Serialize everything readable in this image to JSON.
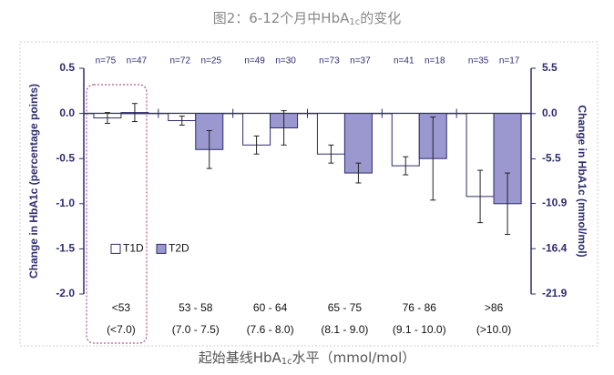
{
  "chart_data": {
    "type": "bar",
    "title": "图2：6-12个月中HbA",
    "title_sub": "1c",
    "title_end": "的变化",
    "caption": "起始基线HbA",
    "caption_sub": "1c",
    "caption_end": "水平（mmol/mol）",
    "y_label": "Change in HbA1c (percentage points)",
    "y2_label": "Change in HbA1c (mmol/mol)",
    "categories": [
      "<53",
      "53 - 58",
      "60 - 64",
      "65 - 75",
      "76 - 86",
      ">86"
    ],
    "categories_sub": [
      "(<7.0)",
      "(7.0 - 7.5)",
      "(7.6 - 8.0)",
      "(8.1 - 9.0)",
      "(9.1 - 10.0)",
      "(>10.0)"
    ],
    "series": [
      {
        "name": "T1D",
        "color": "#ffffff",
        "values": [
          -0.05,
          -0.08,
          -0.35,
          -0.45,
          -0.58,
          -0.92
        ],
        "errors": [
          0.06,
          0.05,
          0.1,
          0.1,
          0.1,
          0.29
        ],
        "n_labels": [
          "n=75",
          "n=72",
          "n=49",
          "n=73",
          "n=41",
          "n=35"
        ]
      },
      {
        "name": "T2D",
        "color": "#9b97cf",
        "values": [
          0.01,
          -0.4,
          -0.16,
          -0.66,
          -0.5,
          -1.0
        ],
        "errors": [
          0.1,
          0.21,
          0.19,
          0.11,
          0.46,
          0.34
        ],
        "n_labels": [
          "n=47",
          "n=25",
          "n=30",
          "n=37",
          "n=18",
          "n=17"
        ]
      }
    ],
    "ylim": [
      -2.0,
      0.5
    ],
    "yticks": [
      0.5,
      {
        "value": 0,
        "label": "0.0"
      },
      -0.5,
      {
        "value": -1,
        "label": "-1.0"
      },
      -1.5,
      {
        "value": -2,
        "label": "-2.0"
      }
    ],
    "y2lim": [
      -21.9,
      5.5
    ],
    "y2ticks": [
      5.5,
      {
        "value": 0,
        "label": "0.0"
      },
      -5.5,
      -10.9,
      -16.4,
      -21.9
    ],
    "edge_color": "#2e2c6e",
    "legend_position": "lower left"
  }
}
